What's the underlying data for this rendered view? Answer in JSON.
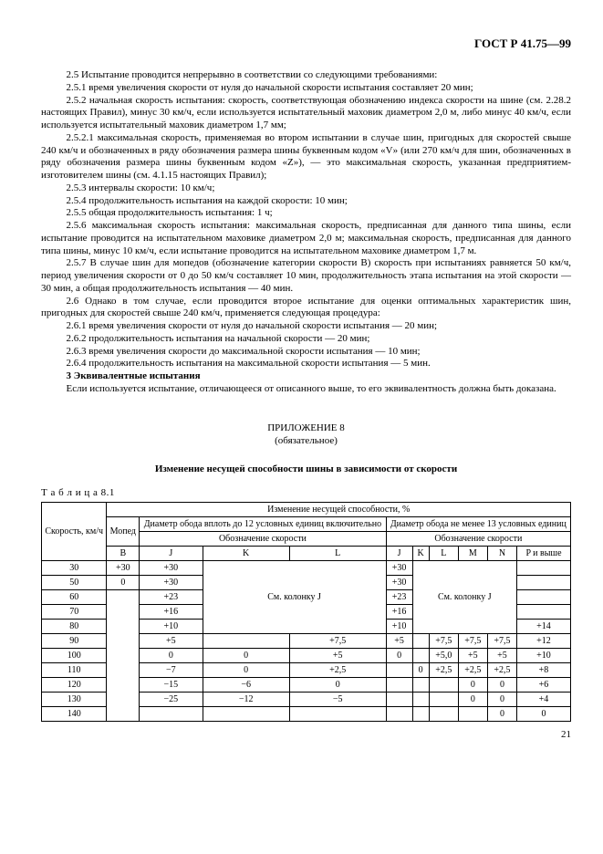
{
  "header": {
    "code": "ГОСТ Р 41.75—99"
  },
  "paragraphs": [
    "2.5 Испытание проводится непрерывно в соответствии со следующими требованиями:",
    "2.5.1 время увеличения скорости от нуля до начальной скорости испытания составляет 20 мин;",
    "2.5.2 начальная скорость испытания: скорость, соответствующая обозначению индекса скорости на шине (см. 2.28.2 настоящих Правил), минус 30 км/ч, если используется испытательный маховик диаметром 2,0 м, либо минус 40 км/ч, если используется испытательный маховик диаметром 1,7 мм;",
    "2.5.2.1 максимальная скорость, применяемая во втором испытании в случае шин, пригодных для скоростей свыше 240 км/ч и обозначенных в ряду обозначения размера шины буквенным кодом «V» (или 270 км/ч для шин, обозначенных в ряду обозначения размера шины буквенным кодом «Z»), — это максимальная скорость, указанная предприятием-изготовителем шины (см. 4.1.15 настоящих Правил);",
    "2.5.3 интервалы скорости: 10 км/ч;",
    "2.5.4 продолжительность испытания на каждой скорости: 10 мин;",
    "2.5.5 общая продолжительность испытания: 1 ч;",
    "2.5.6 максимальная скорость испытания: максимальная скорость, предписанная для данного типа шины, если испытание проводится на испытательном маховике диаметром 2,0 м; максимальная скорость, предписанная для данного типа шины, минус 10 км/ч, если испытание проводится на испытательном маховике диаметром 1,7 м.",
    "2.5.7 В случае шин для мопедов (обозначение категории скорости B) скорость при испытаниях равняется 50 км/ч, период увеличения скорости от 0 до 50 км/ч составляет 10 мин, продолжительность этапа испытания на этой скорости — 30 мин, а общая продолжительность испытания — 40 мин.",
    "2.6 Однако в том случае, если проводится второе испытание для оценки оптимальных характеристик шин, пригодных для скоростей свыше 240 км/ч, применяется следующая процедура:",
    "2.6.1 время увеличения скорости от нуля до начальной скорости испытания — 20 мин;",
    "2.6.2 продолжительность испытания на начальной скорости — 20 мин;",
    "2.6.3 время увеличения скорости до максимальной скорости испытания — 10 мин;",
    "2.6.4 продолжительность испытания на максимальной скорости испытания — 5 мин.",
    "3 Эквивалентные испытания",
    "Если используется испытание, отличающееся от описанного выше, то его эквивалентность должна быть доказана."
  ],
  "bold_paragraph_index": 14,
  "appendix": {
    "title": "ПРИЛОЖЕНИЕ 8",
    "note": "(обязательное)"
  },
  "section_heading": "Изменение несущей способности шины в зависимости от скорости",
  "table": {
    "caption": "Т а б л и ц а  8.1",
    "super_header": "Изменение несущей способности, %",
    "row_header": "Скорость, км/ч",
    "group_headers": {
      "moped": "Мопед",
      "rim_upto12": "Диаметр обода вплоть до 12 условных единиц включительно",
      "rim_from13": "Диаметр обода не менее 13 условных единиц"
    },
    "speed_designation": "Обозначение скорости",
    "column_letters": [
      "B",
      "J",
      "K",
      "L",
      "J",
      "K",
      "L",
      "M",
      "N",
      "P и выше"
    ],
    "see_col_j": "См. колонку J",
    "speeds": [
      "30",
      "50",
      "60",
      "70",
      "80",
      "90",
      "100",
      "110",
      "120",
      "130",
      "140"
    ],
    "cells": {
      "r30": {
        "B": "+30",
        "J1": "+30",
        "J2": "+30"
      },
      "r50": {
        "B": "0",
        "J1": "+30",
        "J2": "+30"
      },
      "r60": {
        "J1": "+23",
        "J2": "+23"
      },
      "r70": {
        "J1": "+16",
        "J2": "+16"
      },
      "r80": {
        "J1": "+10",
        "J2": "+10",
        "P": "+14"
      },
      "r90": {
        "J1": "+5",
        "L1": "+7,5",
        "J2": "+5",
        "L2": "+7,5",
        "M": "+7,5",
        "N": "+7,5",
        "P": "+12"
      },
      "r100": {
        "J1": "0",
        "K1": "0",
        "L1": "+5",
        "J2": "0",
        "L2": "+5,0",
        "M": "+5",
        "N": "+5",
        "P": "+10"
      },
      "r110": {
        "J1": "−7",
        "K1": "0",
        "L1": "+2,5",
        "J2": "0",
        "L2": "+2,5",
        "M": "+2,5",
        "N": "+2,5",
        "P": "+8"
      },
      "r120": {
        "J1": "−15",
        "K1": "−6",
        "L1": "0",
        "M": "0",
        "N": "0",
        "P": "+6"
      },
      "r130": {
        "J1": "−25",
        "K1": "−12",
        "L1": "−5",
        "M": "0",
        "N": "0",
        "P": "+4"
      },
      "r140": {
        "N": "0",
        "P": "0"
      }
    }
  },
  "page_number": "21",
  "style": {
    "font": "Times New Roman",
    "body_fontsize": 11,
    "table_fontsize": 10,
    "text_color": "#000000",
    "background": "#ffffff",
    "border_color": "#000000"
  }
}
